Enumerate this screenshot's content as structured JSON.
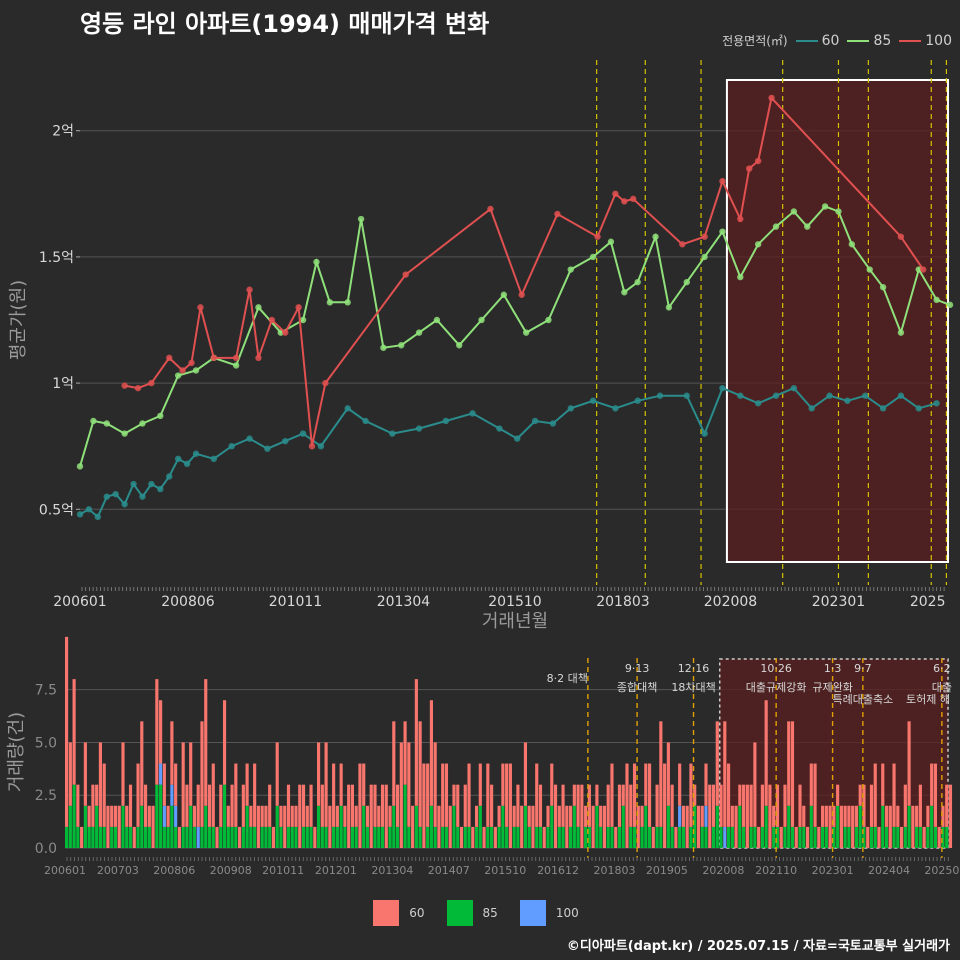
{
  "title": "영등 라인 아파트(1994) 매매가격 변화",
  "legend_top": {
    "title": "전용면적(㎡)",
    "items": [
      {
        "label": "60",
        "color": "#2a8c8c"
      },
      {
        "label": "85",
        "color": "#8fe07a"
      },
      {
        "label": "100",
        "color": "#e05050"
      }
    ]
  },
  "legend_bottom": {
    "items": [
      {
        "label": "60",
        "color": "#f8766d"
      },
      {
        "label": "85",
        "color": "#00ba38"
      },
      {
        "label": "100",
        "color": "#619cff"
      }
    ]
  },
  "footer": "©디아파트(dapt.kr) / 2025.07.15 / 자료=국토교통부 실거래가",
  "chart_data": [
    {
      "type": "line",
      "ylabel": "평균가(원)",
      "xlabel": "거래년월",
      "xlim": [
        2006.0,
        2025.5
      ],
      "ylim": [
        0.2,
        2.3
      ],
      "y_ticks": [
        {
          "v": 0.5,
          "label": "0.5억"
        },
        {
          "v": 1.0,
          "label": "1억"
        },
        {
          "v": 1.5,
          "label": "1.5억"
        },
        {
          "v": 2.0,
          "label": "2억"
        }
      ],
      "x_ticks": [
        {
          "v": 2006.0,
          "label": "200601"
        },
        {
          "v": 2008.42,
          "label": "200806"
        },
        {
          "v": 2010.83,
          "label": "201011"
        },
        {
          "v": 2013.25,
          "label": "201304"
        },
        {
          "v": 2015.75,
          "label": "201510"
        },
        {
          "v": 2018.17,
          "label": "201803"
        },
        {
          "v": 2020.58,
          "label": "202008"
        },
        {
          "v": 2023.0,
          "label": "202301"
        },
        {
          "v": 2025.0,
          "label": "2025"
        }
      ],
      "grid": true,
      "vlines": [
        2017.58,
        2018.67,
        2019.92,
        2021.75,
        2023.0,
        2023.67,
        2025.08,
        2025.42
      ],
      "highlight": [
        2020.5,
        2025.5
      ],
      "series": [
        {
          "name": "60",
          "color": "#2a8c8c",
          "x": [
            2006.0,
            2006.2,
            2006.4,
            2006.6,
            2006.8,
            2007.0,
            2007.2,
            2007.4,
            2007.6,
            2007.8,
            2008.0,
            2008.2,
            2008.4,
            2008.6,
            2009.0,
            2009.4,
            2009.8,
            2010.2,
            2010.6,
            2011.0,
            2011.4,
            2012.0,
            2012.4,
            2013.0,
            2013.6,
            2014.2,
            2014.8,
            2015.4,
            2015.8,
            2016.2,
            2016.6,
            2017.0,
            2017.5,
            2018.0,
            2018.5,
            2019.0,
            2019.6,
            2020.0,
            2020.4,
            2020.8,
            2021.2,
            2021.6,
            2022.0,
            2022.4,
            2022.8,
            2023.2,
            2023.6,
            2024.0,
            2024.4,
            2024.8,
            2025.2
          ],
          "y": [
            0.48,
            0.5,
            0.47,
            0.55,
            0.56,
            0.52,
            0.6,
            0.55,
            0.6,
            0.58,
            0.63,
            0.7,
            0.68,
            0.72,
            0.7,
            0.75,
            0.78,
            0.74,
            0.77,
            0.8,
            0.75,
            0.9,
            0.85,
            0.8,
            0.82,
            0.85,
            0.88,
            0.82,
            0.78,
            0.85,
            0.84,
            0.9,
            0.93,
            0.9,
            0.93,
            0.95,
            0.95,
            0.8,
            0.98,
            0.95,
            0.92,
            0.95,
            0.98,
            0.9,
            0.95,
            0.93,
            0.95,
            0.9,
            0.95,
            0.9,
            0.92
          ]
        },
        {
          "name": "85",
          "color": "#8fe07a",
          "x": [
            2006.0,
            2006.3,
            2006.6,
            2007.0,
            2007.4,
            2007.8,
            2008.2,
            2008.6,
            2009.0,
            2009.5,
            2010.0,
            2010.5,
            2011.0,
            2011.3,
            2011.6,
            2012.0,
            2012.3,
            2012.8,
            2013.2,
            2013.6,
            2014.0,
            2014.5,
            2015.0,
            2015.5,
            2016.0,
            2016.5,
            2017.0,
            2017.5,
            2017.9,
            2018.2,
            2018.5,
            2018.9,
            2019.2,
            2019.6,
            2020.0,
            2020.4,
            2020.8,
            2021.2,
            2021.6,
            2022.0,
            2022.3,
            2022.7,
            2023.0,
            2023.3,
            2023.7,
            2024.0,
            2024.4,
            2024.8,
            2025.2,
            2025.5
          ],
          "y": [
            0.67,
            0.85,
            0.84,
            0.8,
            0.84,
            0.87,
            1.03,
            1.05,
            1.1,
            1.07,
            1.3,
            1.2,
            1.25,
            1.48,
            1.32,
            1.32,
            1.65,
            1.14,
            1.15,
            1.2,
            1.25,
            1.15,
            1.25,
            1.35,
            1.2,
            1.25,
            1.45,
            1.5,
            1.56,
            1.36,
            1.4,
            1.58,
            1.3,
            1.4,
            1.5,
            1.6,
            1.42,
            1.55,
            1.62,
            1.68,
            1.62,
            1.7,
            1.68,
            1.55,
            1.45,
            1.38,
            1.2,
            1.45,
            1.33,
            1.31
          ]
        },
        {
          "name": "100",
          "color": "#e05050",
          "x": [
            2007.0,
            2007.3,
            2007.6,
            2008.0,
            2008.3,
            2008.5,
            2008.7,
            2009.0,
            2009.5,
            2009.8,
            2010.0,
            2010.3,
            2010.6,
            2010.9,
            2011.2,
            2011.5,
            2013.3,
            2015.2,
            2015.9,
            2016.7,
            2017.6,
            2018.0,
            2018.2,
            2018.4,
            2019.5,
            2020.0,
            2020.4,
            2020.8,
            2021.0,
            2021.2,
            2021.5,
            2024.4,
            2024.9
          ],
          "y": [
            0.99,
            0.98,
            1.0,
            1.1,
            1.05,
            1.08,
            1.3,
            1.1,
            1.1,
            1.37,
            1.1,
            1.25,
            1.2,
            1.3,
            0.75,
            1.0,
            1.43,
            1.69,
            1.35,
            1.67,
            1.58,
            1.75,
            1.72,
            1.73,
            1.55,
            1.58,
            1.8,
            1.65,
            1.85,
            1.88,
            2.13,
            1.58,
            1.45
          ]
        }
      ]
    },
    {
      "type": "bar",
      "ylabel": "거래량(건)",
      "ylim": [
        0,
        9
      ],
      "y_ticks": [
        {
          "v": 0.0,
          "label": "0.0"
        },
        {
          "v": 2.5,
          "label": "2.5"
        },
        {
          "v": 5.0,
          "label": "5.0"
        },
        {
          "v": 7.5,
          "label": "7.5"
        }
      ],
      "x_ticks": [
        {
          "v": 2006.0,
          "label": "200601"
        },
        {
          "v": 2007.17,
          "label": "200703"
        },
        {
          "v": 2008.42,
          "label": "200806"
        },
        {
          "v": 2009.67,
          "label": "200908"
        },
        {
          "v": 2010.83,
          "label": "201011"
        },
        {
          "v": 2012.0,
          "label": "201201"
        },
        {
          "v": 2013.25,
          "label": "201304"
        },
        {
          "v": 2014.5,
          "label": "201407"
        },
        {
          "v": 2015.75,
          "label": "201510"
        },
        {
          "v": 2016.92,
          "label": "201612"
        },
        {
          "v": 2018.17,
          "label": "201803"
        },
        {
          "v": 2019.33,
          "label": "201905"
        },
        {
          "v": 2020.58,
          "label": "202008"
        },
        {
          "v": 2021.75,
          "label": "202110"
        },
        {
          "v": 2023.0,
          "label": "202301"
        },
        {
          "v": 2024.25,
          "label": "202404"
        },
        {
          "v": 2025.42,
          "label": "20250"
        }
      ],
      "events": [
        {
          "x": 2017.58,
          "l1": "8·2 대책",
          "l2": ""
        },
        {
          "x": 2018.67,
          "l1": "9·13",
          "l2": "종합대책"
        },
        {
          "x": 2019.92,
          "l1": "12·16",
          "l2": "18차대책"
        },
        {
          "x": 2021.75,
          "l1": "10·26",
          "l2": "대출규제강화"
        },
        {
          "x": 2023.0,
          "l1": "1·3",
          "l2": "규제완화"
        },
        {
          "x": 2023.67,
          "l1": "9·7",
          "l2": "특례대출축소"
        },
        {
          "x": 2025.42,
          "l1": "6·2",
          "l2": "대출"
        }
      ],
      "extra_label": "토허제 해",
      "series": [
        {
          "name": "60",
          "color": "#f8766d"
        },
        {
          "name": "85",
          "color": "#00ba38"
        },
        {
          "name": "100",
          "color": "#619cff"
        }
      ],
      "volume": {
        "start": 2006.0,
        "step": 0.0833,
        "60": [
          9,
          3,
          5,
          2,
          1,
          3,
          1,
          2,
          1,
          4,
          3,
          2,
          1,
          1,
          2,
          3,
          1,
          2,
          1,
          3,
          4,
          2,
          1,
          2,
          5,
          3,
          2,
          1,
          3,
          2,
          1,
          4,
          2,
          3,
          1,
          2,
          5,
          6,
          2,
          3,
          1,
          2,
          4,
          1,
          2,
          3,
          1,
          2,
          2,
          1,
          3,
          2,
          1,
          1,
          2,
          1,
          3,
          1,
          2,
          2,
          1,
          1,
          3,
          2,
          1,
          2,
          1,
          3,
          2,
          4,
          2,
          3,
          1,
          2,
          1,
          3,
          2,
          1,
          4,
          2,
          1,
          3,
          2,
          1,
          2,
          3,
          1,
          4,
          2,
          5,
          3,
          4,
          2,
          6,
          5,
          4,
          3,
          5,
          4,
          2,
          3,
          3,
          2,
          1,
          2,
          1,
          2,
          3,
          1,
          1,
          2,
          1,
          3,
          2,
          1,
          1,
          2,
          3,
          4,
          1,
          2,
          2,
          3,
          1,
          2,
          3,
          2,
          1,
          1,
          2,
          3,
          1,
          2,
          2,
          1,
          1,
          2,
          3,
          1,
          2,
          2,
          1,
          1,
          2,
          2,
          3,
          1,
          2,
          1,
          4,
          2,
          3,
          2,
          1,
          2,
          3,
          1,
          2,
          5,
          4,
          3,
          2,
          1,
          2,
          1,
          2,
          3,
          1,
          2,
          1,
          2,
          3,
          2,
          4,
          2,
          5,
          3,
          1,
          2,
          1,
          2,
          3,
          2,
          4,
          1,
          2,
          5,
          3,
          1,
          2,
          1,
          2,
          4,
          5,
          1,
          2,
          1,
          1,
          2,
          3,
          1,
          1,
          1,
          2,
          1,
          1,
          2,
          1,
          1,
          2,
          1,
          1,
          2,
          1,
          2,
          3,
          1,
          2,
          1,
          2,
          3,
          1,
          1,
          2,
          4,
          2,
          1,
          2,
          1,
          1,
          2,
          3,
          1,
          1,
          2,
          3
        ],
        "85": [
          1,
          2,
          3,
          1,
          0,
          2,
          1,
          1,
          2,
          1,
          1,
          0,
          1,
          1,
          0,
          2,
          1,
          1,
          0,
          1,
          2,
          1,
          1,
          0,
          3,
          3,
          1,
          1,
          2,
          1,
          0,
          1,
          1,
          2,
          1,
          0,
          1,
          2,
          1,
          1,
          0,
          1,
          3,
          1,
          1,
          1,
          0,
          1,
          2,
          1,
          1,
          0,
          1,
          1,
          1,
          0,
          2,
          1,
          0,
          1,
          1,
          1,
          0,
          1,
          1,
          1,
          0,
          2,
          1,
          1,
          0,
          1,
          1,
          2,
          1,
          0,
          1,
          1,
          0,
          2,
          1,
          0,
          1,
          1,
          1,
          0,
          1,
          2,
          1,
          0,
          3,
          1,
          0,
          2,
          1,
          0,
          1,
          2,
          1,
          0,
          1,
          1,
          0,
          2,
          1,
          0,
          1,
          1,
          0,
          1,
          2,
          0,
          1,
          1,
          0,
          1,
          2,
          1,
          0,
          1,
          1,
          0,
          2,
          1,
          0,
          1,
          1,
          0,
          1,
          2,
          0,
          1,
          1,
          0,
          1,
          2,
          1,
          0,
          1,
          1,
          0,
          2,
          1,
          0,
          1,
          1,
          0,
          1,
          2,
          0,
          1,
          1,
          0,
          1,
          2,
          1,
          0,
          1,
          1,
          0,
          2,
          1,
          0,
          1,
          1,
          0,
          1,
          2,
          0,
          1,
          1,
          0,
          1,
          2,
          1,
          0,
          1,
          1,
          0,
          2,
          1,
          0,
          1,
          1,
          0,
          1,
          2,
          0,
          1,
          1,
          0,
          1,
          2,
          1,
          0,
          1,
          1,
          0,
          2,
          1,
          0,
          1,
          1,
          0,
          1,
          2,
          0,
          1,
          1,
          0,
          1,
          2,
          1,
          0,
          1,
          1,
          0,
          2,
          1,
          0,
          1,
          1,
          0,
          1,
          2,
          0,
          1,
          1,
          0,
          1,
          2,
          1,
          0,
          1,
          1,
          0,
          2,
          1,
          0,
          1,
          1,
          0
        ],
        "100": [
          0,
          0,
          0,
          0,
          0,
          0,
          0,
          0,
          0,
          0,
          0,
          0,
          0,
          0,
          0,
          0,
          0,
          0,
          0,
          0,
          0,
          0,
          0,
          0,
          0,
          1,
          1,
          0,
          1,
          1,
          0,
          0,
          0,
          0,
          0,
          1,
          0,
          0,
          0,
          0,
          0,
          0,
          0,
          0,
          0,
          0,
          0,
          0,
          0,
          0,
          0,
          0,
          0,
          0,
          0,
          0,
          0,
          0,
          0,
          0,
          0,
          0,
          0,
          0,
          0,
          0,
          0,
          0,
          0,
          0,
          0,
          0,
          0,
          0,
          0,
          0,
          0,
          0,
          0,
          0,
          0,
          0,
          0,
          0,
          0,
          0,
          0,
          0,
          0,
          0,
          0,
          0,
          0,
          0,
          0,
          0,
          0,
          0,
          0,
          0,
          0,
          0,
          0,
          0,
          0,
          0,
          0,
          0,
          0,
          0,
          0,
          0,
          0,
          0,
          0,
          0,
          0,
          0,
          0,
          0,
          0,
          0,
          0,
          0,
          0,
          0,
          0,
          0,
          0,
          0,
          0,
          0,
          0,
          0,
          0,
          0,
          0,
          0,
          0,
          0,
          0,
          0,
          0,
          0,
          0,
          0,
          0,
          0,
          0,
          0,
          0,
          0,
          0,
          0,
          0,
          0,
          0,
          0,
          0,
          0,
          0,
          0,
          0,
          1,
          0,
          0,
          0,
          0,
          0,
          0,
          1,
          0,
          0,
          0,
          0,
          1,
          0,
          0,
          0,
          0,
          0,
          0,
          0,
          0,
          0,
          0,
          0,
          0,
          0,
          0,
          0,
          0,
          0,
          0,
          0,
          0,
          0,
          0,
          0,
          0,
          0,
          0,
          0,
          0,
          0,
          0,
          0,
          0,
          0,
          0,
          0,
          0,
          0,
          0,
          0,
          0,
          0,
          0,
          0,
          0,
          0,
          0,
          0,
          0,
          0,
          0,
          0,
          0,
          0,
          0,
          0,
          0,
          0,
          0,
          0,
          0,
          0,
          0,
          0,
          0
        ]
      }
    }
  ]
}
